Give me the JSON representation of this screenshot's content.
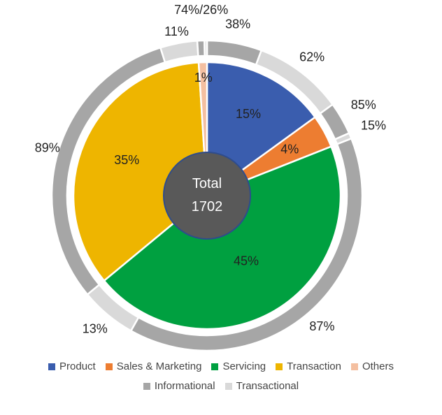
{
  "center": {
    "line1": "Total",
    "line2": "1702"
  },
  "colors": {
    "Product": "#3A5DAE",
    "Sales & Marketing": "#ED7D31",
    "Servicing": "#00A040",
    "Transaction": "#EEB500",
    "Others": "#F4BFA0",
    "Informational": "#A6A6A6",
    "Transactional": "#D9D9D9"
  },
  "chart_data": {
    "type": "pie",
    "subtype": "nested-doughnut",
    "inner": [
      {
        "label": "Product",
        "value": 15,
        "text": "15%"
      },
      {
        "label": "Sales & Marketing",
        "value": 4,
        "text": "4%"
      },
      {
        "label": "Servicing",
        "value": 45,
        "text": "45%"
      },
      {
        "label": "Transaction",
        "value": 35,
        "text": "35%"
      },
      {
        "label": "Others",
        "value": 1,
        "text": "1%"
      }
    ],
    "outer": [
      {
        "parent": "Product",
        "informational": 38,
        "transactional": 62,
        "text_inf": "38%",
        "text_tra": "62%"
      },
      {
        "parent": "Sales & Marketing",
        "informational": 85,
        "transactional": 15,
        "text_inf": "85%",
        "text_tra": "15%"
      },
      {
        "parent": "Servicing",
        "informational": 87,
        "transactional": 13,
        "text_inf": "87%",
        "text_tra": "13%"
      },
      {
        "parent": "Transaction",
        "informational": 89,
        "transactional": 11,
        "text_inf": "89%",
        "text_tra": "11%"
      },
      {
        "parent": "Others",
        "informational": 74,
        "transactional": 26,
        "text_combined": "74%/26%"
      }
    ],
    "legend": {
      "row1": [
        "Product",
        "Sales & Marketing",
        "Servicing",
        "Transaction",
        "Others"
      ],
      "row2": [
        "Informational",
        "Transactional"
      ]
    }
  }
}
